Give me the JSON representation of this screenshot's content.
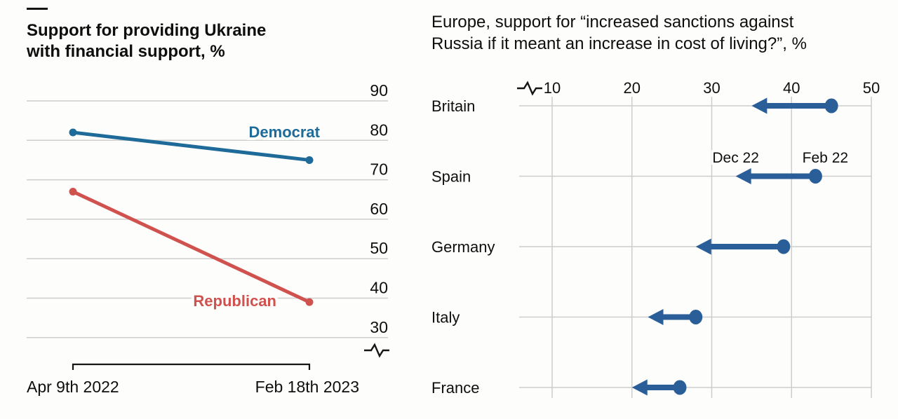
{
  "colors": {
    "background": "#fdfdfb",
    "text": "#0f0f0f",
    "gridline": "#cdcdcd",
    "democrat_blue": "#1e6a99",
    "republican_red": "#d0524e",
    "arrow_blue": "#2a5e99",
    "axis_black": "#151515"
  },
  "chart_data": [
    {
      "type": "line",
      "title": "Support for providing Ukraine with financial support, %",
      "title_lines": [
        "Support for providing Ukraine",
        "with financial support, %"
      ],
      "x": [
        "Apr 9th 2022",
        "Feb 18th 2023"
      ],
      "series": [
        {
          "name": "Democrat",
          "values": [
            82,
            75
          ],
          "color": "#1e6a99"
        },
        {
          "name": "Republican",
          "values": [
            67,
            39
          ],
          "color": "#d0524e"
        }
      ],
      "yticks": [
        90,
        80,
        70,
        60,
        50,
        40,
        30
      ],
      "ylim": [
        26,
        93
      ],
      "grid": "horizontal",
      "legend": "inline-labels",
      "axis_break": true
    },
    {
      "type": "arrow-dumbbell",
      "title": "Europe, support for “increased sanctions against Russia if it meant an increase in cost of living?”, %",
      "title_lines": [
        "Europe, support for “increased sanctions against",
        "Russia if it meant an increase in cost of living?”, %"
      ],
      "categories": [
        "Britain",
        "Spain",
        "Germany",
        "Italy",
        "France"
      ],
      "series": [
        {
          "name": "Feb 22",
          "role": "start",
          "values": [
            45,
            43,
            39,
            28,
            26
          ]
        },
        {
          "name": "Dec 22",
          "role": "end",
          "values": [
            35,
            33,
            28,
            22,
            20
          ]
        }
      ],
      "xticks": [
        10,
        20,
        30,
        40,
        50
      ],
      "xlim": [
        6,
        52
      ],
      "color": "#2a5e99",
      "grid": "vertical",
      "annotation_row": "Spain",
      "axis_break": true
    }
  ]
}
